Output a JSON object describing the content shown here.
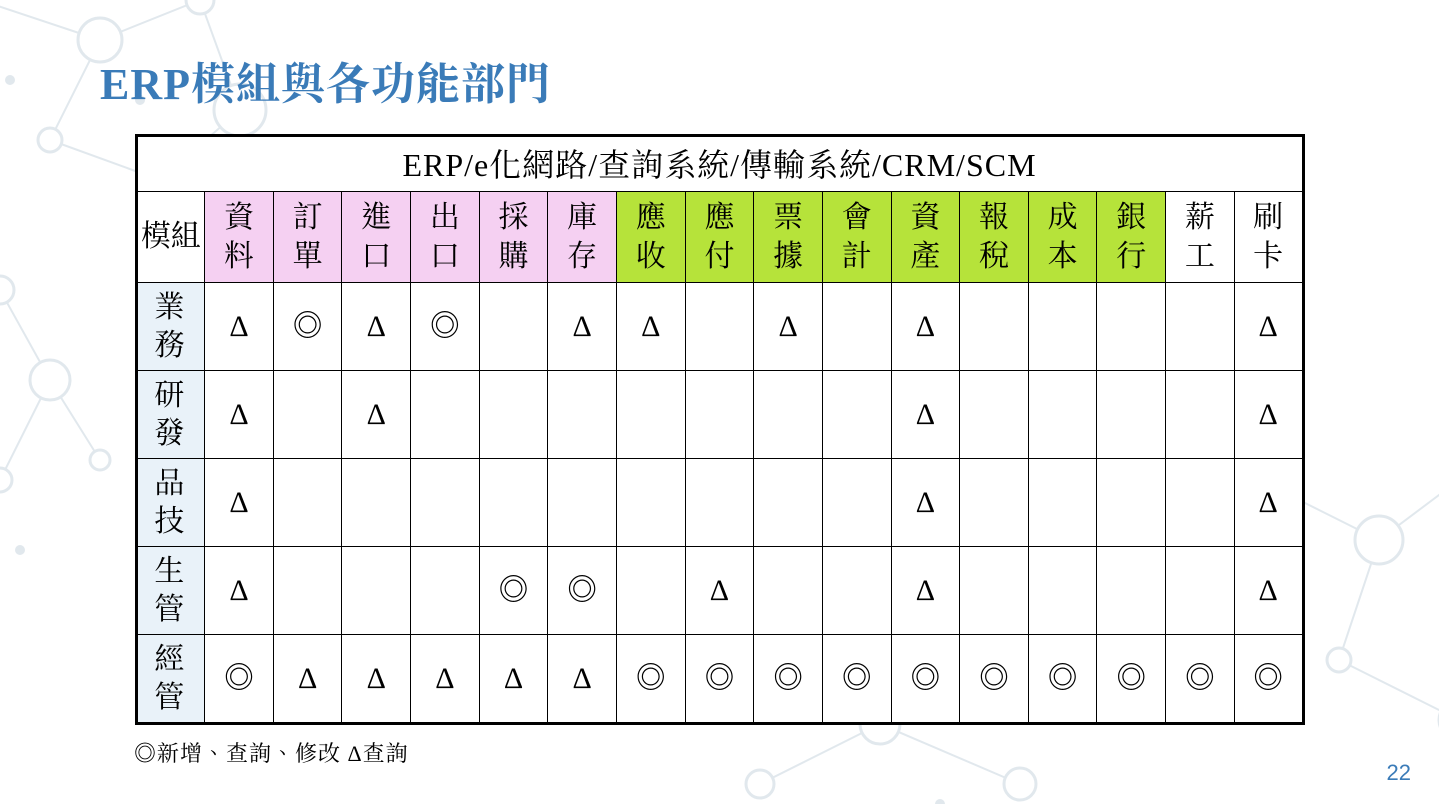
{
  "title": "ERP模組與各功能部門",
  "title_color": "#3a7bb8",
  "page_number": "22",
  "page_number_color": "#3a7bb8",
  "table": {
    "header_title": "ERP/e化網路/查詢系統/傳輸系統/CRM/SCM",
    "module_label": "模組",
    "modules": [
      {
        "label": "資料",
        "bg": "#f5d0f2"
      },
      {
        "label": "訂單",
        "bg": "#f5d0f2"
      },
      {
        "label": "進口",
        "bg": "#f5d0f2"
      },
      {
        "label": "出口",
        "bg": "#f5d0f2"
      },
      {
        "label": "採購",
        "bg": "#f5d0f2"
      },
      {
        "label": "庫存",
        "bg": "#f5d0f2"
      },
      {
        "label": "應收",
        "bg": "#b6e33a"
      },
      {
        "label": "應付",
        "bg": "#b6e33a"
      },
      {
        "label": "票據",
        "bg": "#b6e33a"
      },
      {
        "label": "會計",
        "bg": "#b6e33a"
      },
      {
        "label": "資產",
        "bg": "#b6e33a"
      },
      {
        "label": "報稅",
        "bg": "#b6e33a"
      },
      {
        "label": "成本",
        "bg": "#b6e33a"
      },
      {
        "label": "銀行",
        "bg": "#b6e33a"
      },
      {
        "label": "薪工",
        "bg": "#ffffff"
      },
      {
        "label": "刷卡",
        "bg": "#ffffff"
      }
    ],
    "row_label_bg": "#e9f2f9",
    "rows": [
      {
        "label": "業務",
        "cells": [
          "Δ",
          "◎",
          "Δ",
          "◎",
          "",
          "Δ",
          "Δ",
          "",
          "Δ",
          "",
          "Δ",
          "",
          "",
          "",
          "",
          "Δ"
        ]
      },
      {
        "label": "研發",
        "cells": [
          "Δ",
          "",
          "Δ",
          "",
          "",
          "",
          "",
          "",
          "",
          "",
          "Δ",
          "",
          "",
          "",
          "",
          "Δ"
        ]
      },
      {
        "label": "品技",
        "cells": [
          "Δ",
          "",
          "",
          "",
          "",
          "",
          "",
          "",
          "",
          "",
          "Δ",
          "",
          "",
          "",
          "",
          "Δ"
        ]
      },
      {
        "label": "生管",
        "cells": [
          "Δ",
          "",
          "",
          "",
          "◎",
          "◎",
          "",
          "Δ",
          "",
          "",
          "Δ",
          "",
          "",
          "",
          "",
          "Δ"
        ]
      },
      {
        "label": "經管",
        "cells": [
          "◎",
          "Δ",
          "Δ",
          "Δ",
          "Δ",
          "Δ",
          "◎",
          "◎",
          "◎",
          "◎",
          "◎",
          "◎",
          "◎",
          "◎",
          "◎",
          "◎"
        ]
      }
    ]
  },
  "legend": "◎新增、查詢、修改  Δ查詢",
  "symbols": {
    "full": "◎",
    "query": "Δ"
  },
  "colors": {
    "border": "#000000",
    "bg": "#ffffff",
    "network_stroke": "#8aa5ba"
  }
}
